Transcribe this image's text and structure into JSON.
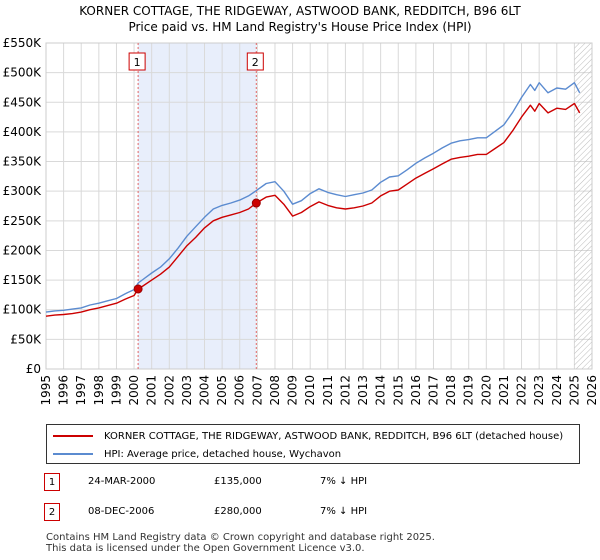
{
  "chart_data": {
    "type": "line",
    "title": "KORNER COTTAGE, THE RIDGEWAY, ASTWOOD BANK, REDDITCH, B96 6LT",
    "subtitle": "Price paid vs. HM Land Registry's House Price Index (HPI)",
    "xlim": [
      1995,
      2026
    ],
    "ylim": [
      0,
      550000
    ],
    "x_ticks": [
      "1995",
      "1996",
      "1997",
      "1998",
      "1999",
      "2000",
      "2001",
      "2002",
      "2003",
      "2004",
      "2005",
      "2006",
      "2007",
      "2008",
      "2009",
      "2010",
      "2011",
      "2012",
      "2013",
      "2014",
      "2015",
      "2016",
      "2017",
      "2018",
      "2019",
      "2020",
      "2021",
      "2022",
      "2023",
      "2024",
      "2025",
      "2026"
    ],
    "y_ticks": [
      {
        "value": 0,
        "label": "£0"
      },
      {
        "value": 50000,
        "label": "£50K"
      },
      {
        "value": 100000,
        "label": "£100K"
      },
      {
        "value": 150000,
        "label": "£150K"
      },
      {
        "value": 200000,
        "label": "£200K"
      },
      {
        "value": 250000,
        "label": "£250K"
      },
      {
        "value": 300000,
        "label": "£300K"
      },
      {
        "value": 350000,
        "label": "£350K"
      },
      {
        "value": 400000,
        "label": "£400K"
      },
      {
        "value": 450000,
        "label": "£450K"
      },
      {
        "value": 500000,
        "label": "£500K"
      },
      {
        "value": 550000,
        "label": "£550K"
      }
    ],
    "shaded_region": [
      2000.23,
      2006.94
    ],
    "future_hatch_from": 2025.0,
    "series": [
      {
        "name": "KORNER COTTAGE, THE RIDGEWAY, ASTWOOD BANK, REDDITCH, B96 6LT (detached house)",
        "color": "#cc0000",
        "points": [
          [
            1995.0,
            89000
          ],
          [
            1995.5,
            91000
          ],
          [
            1996.0,
            92000
          ],
          [
            1996.5,
            93500
          ],
          [
            1997.0,
            96000
          ],
          [
            1997.5,
            100000
          ],
          [
            1998.0,
            103000
          ],
          [
            1998.5,
            107000
          ],
          [
            1999.0,
            111000
          ],
          [
            1999.5,
            118000
          ],
          [
            2000.0,
            124000
          ],
          [
            2000.23,
            135000
          ],
          [
            2000.5,
            140000
          ],
          [
            2001.0,
            150000
          ],
          [
            2001.5,
            160000
          ],
          [
            2002.0,
            172000
          ],
          [
            2002.5,
            190000
          ],
          [
            2003.0,
            208000
          ],
          [
            2003.5,
            222000
          ],
          [
            2004.0,
            238000
          ],
          [
            2004.5,
            250000
          ],
          [
            2005.0,
            256000
          ],
          [
            2005.5,
            260000
          ],
          [
            2006.0,
            264000
          ],
          [
            2006.5,
            270000
          ],
          [
            2006.94,
            280000
          ],
          [
            2007.5,
            290000
          ],
          [
            2008.0,
            293000
          ],
          [
            2008.5,
            278000
          ],
          [
            2009.0,
            258000
          ],
          [
            2009.5,
            264000
          ],
          [
            2010.0,
            274000
          ],
          [
            2010.5,
            282000
          ],
          [
            2011.0,
            276000
          ],
          [
            2011.5,
            272000
          ],
          [
            2012.0,
            270000
          ],
          [
            2012.5,
            272000
          ],
          [
            2013.0,
            275000
          ],
          [
            2013.5,
            280000
          ],
          [
            2014.0,
            292000
          ],
          [
            2014.5,
            300000
          ],
          [
            2015.0,
            302000
          ],
          [
            2015.5,
            312000
          ],
          [
            2016.0,
            322000
          ],
          [
            2016.5,
            330000
          ],
          [
            2017.0,
            338000
          ],
          [
            2017.5,
            346000
          ],
          [
            2018.0,
            354000
          ],
          [
            2018.5,
            357000
          ],
          [
            2019.0,
            359000
          ],
          [
            2019.5,
            362000
          ],
          [
            2020.0,
            362000
          ],
          [
            2020.5,
            372000
          ],
          [
            2021.0,
            382000
          ],
          [
            2021.5,
            402000
          ],
          [
            2022.0,
            425000
          ],
          [
            2022.5,
            445000
          ],
          [
            2022.75,
            435000
          ],
          [
            2023.0,
            448000
          ],
          [
            2023.5,
            432000
          ],
          [
            2024.0,
            440000
          ],
          [
            2024.5,
            438000
          ],
          [
            2025.0,
            448000
          ],
          [
            2025.3,
            432000
          ]
        ]
      },
      {
        "name": "HPI: Average price, detached house, Wychavon",
        "color": "#5b8bd0",
        "points": [
          [
            1995.0,
            96000
          ],
          [
            1995.5,
            98000
          ],
          [
            1996.0,
            99000
          ],
          [
            1996.5,
            101000
          ],
          [
            1997.0,
            103000
          ],
          [
            1997.5,
            108000
          ],
          [
            1998.0,
            111000
          ],
          [
            1998.5,
            115000
          ],
          [
            1999.0,
            119000
          ],
          [
            1999.5,
            127000
          ],
          [
            2000.0,
            134000
          ],
          [
            2000.23,
            145000
          ],
          [
            2000.5,
            151000
          ],
          [
            2001.0,
            162000
          ],
          [
            2001.5,
            172000
          ],
          [
            2002.0,
            186000
          ],
          [
            2002.5,
            204000
          ],
          [
            2003.0,
            224000
          ],
          [
            2003.5,
            240000
          ],
          [
            2004.0,
            256000
          ],
          [
            2004.5,
            270000
          ],
          [
            2005.0,
            276000
          ],
          [
            2005.5,
            280000
          ],
          [
            2006.0,
            285000
          ],
          [
            2006.5,
            292000
          ],
          [
            2006.94,
            301000
          ],
          [
            2007.5,
            313000
          ],
          [
            2008.0,
            316000
          ],
          [
            2008.5,
            300000
          ],
          [
            2009.0,
            278000
          ],
          [
            2009.5,
            284000
          ],
          [
            2010.0,
            296000
          ],
          [
            2010.5,
            304000
          ],
          [
            2011.0,
            298000
          ],
          [
            2011.5,
            294000
          ],
          [
            2012.0,
            291000
          ],
          [
            2012.5,
            294000
          ],
          [
            2013.0,
            297000
          ],
          [
            2013.5,
            302000
          ],
          [
            2014.0,
            315000
          ],
          [
            2014.5,
            324000
          ],
          [
            2015.0,
            326000
          ],
          [
            2015.5,
            336000
          ],
          [
            2016.0,
            347000
          ],
          [
            2016.5,
            356000
          ],
          [
            2017.0,
            364000
          ],
          [
            2017.5,
            373000
          ],
          [
            2018.0,
            381000
          ],
          [
            2018.5,
            385000
          ],
          [
            2019.0,
            387000
          ],
          [
            2019.5,
            390000
          ],
          [
            2020.0,
            390000
          ],
          [
            2020.5,
            401000
          ],
          [
            2021.0,
            412000
          ],
          [
            2021.5,
            433000
          ],
          [
            2022.0,
            458000
          ],
          [
            2022.5,
            480000
          ],
          [
            2022.75,
            470000
          ],
          [
            2023.0,
            483000
          ],
          [
            2023.5,
            466000
          ],
          [
            2024.0,
            474000
          ],
          [
            2024.5,
            472000
          ],
          [
            2025.0,
            483000
          ],
          [
            2025.3,
            466000
          ]
        ]
      }
    ],
    "sales": [
      {
        "marker": "1",
        "x": 2000.23,
        "price": 135000
      },
      {
        "marker": "2",
        "x": 2006.94,
        "price": 280000
      }
    ]
  },
  "legend": {
    "property_label": "KORNER COTTAGE, THE RIDGEWAY, ASTWOOD BANK, REDDITCH, B96 6LT (detached house)",
    "hpi_label": "HPI: Average price, detached house, Wychavon"
  },
  "sales_table": [
    {
      "marker": "1",
      "date": "24-MAR-2000",
      "price": "£135,000",
      "hpi": "7% ↓ HPI"
    },
    {
      "marker": "2",
      "date": "08-DEC-2006",
      "price": "£280,000",
      "hpi": "7% ↓ HPI"
    }
  ],
  "footer": {
    "line1": "Contains HM Land Registry data © Crown copyright and database right 2025.",
    "line2": "This data is licensed under the Open Government Licence v3.0."
  },
  "colors": {
    "property": "#cc0000",
    "hpi": "#5b8bd0",
    "shade": "#e8eefb",
    "grid": "#d9d9d9"
  }
}
